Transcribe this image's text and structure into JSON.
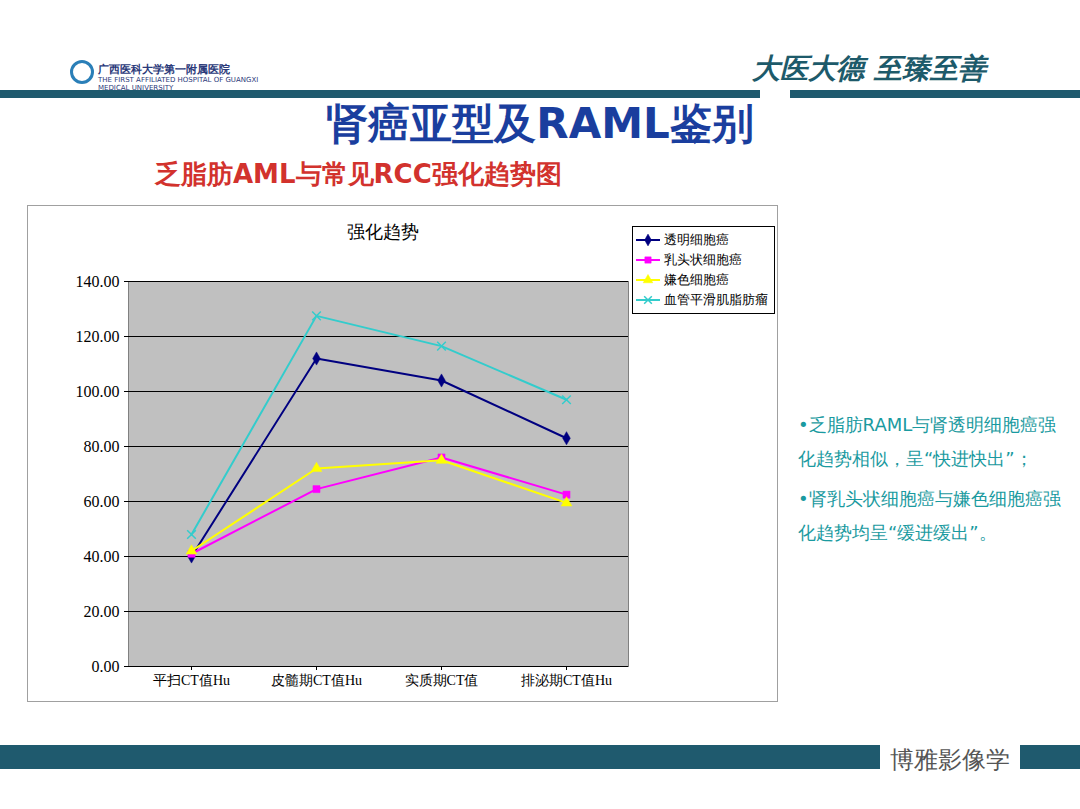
{
  "slide": {
    "logo_cn": "广西医科大学第一附属医院",
    "logo_en": "THE FIRST AFFILIATED HOSPITAL OF GUANGXI MEDICAL UNIVERSITY",
    "slogan": "大医大德 至臻至善",
    "title": "肾癌亚型及RAML鉴别",
    "subtitle": "乏脂肪AML与常见RCC强化趋势图",
    "notes": [
      "•乏脂肪RAML与肾透明细胞癌强化趋势相似，呈“快进快出”；",
      "•肾乳头状细胞癌与嫌色细胞癌强化趋势均呈“缓进缓出”。"
    ],
    "watermark": "博雅影像学"
  },
  "chart_data": {
    "type": "line",
    "title": "强化趋势",
    "categories": [
      "平扫CT值Hu",
      "皮髓期CT值Hu",
      "实质期CT值",
      "排泌期CT值Hu"
    ],
    "series": [
      {
        "name": "透明细胞癌",
        "color": "#000080",
        "marker": "diamond",
        "values": [
          40,
          112,
          104,
          83
        ]
      },
      {
        "name": "乳头状细胞癌",
        "color": "#ff00ff",
        "marker": "square",
        "values": [
          41,
          64.5,
          76,
          62.5
        ]
      },
      {
        "name": "嫌色细胞癌",
        "color": "#ffff00",
        "marker": "triangle",
        "values": [
          42,
          72,
          75,
          59.5
        ]
      },
      {
        "name": "血管平滑肌脂肪瘤",
        "color": "#33cccc",
        "marker": "x",
        "values": [
          48,
          127.5,
          116.5,
          97
        ]
      }
    ],
    "ylim": [
      0,
      140
    ],
    "yticks": [
      {
        "value": 0,
        "label": "0.00"
      },
      {
        "value": 20,
        "label": "20.00"
      },
      {
        "value": 40,
        "label": "40.00"
      },
      {
        "value": 60,
        "label": "60.00"
      },
      {
        "value": 80,
        "label": "80.00"
      },
      {
        "value": 100,
        "label": "100.00"
      },
      {
        "value": 120,
        "label": "120.00"
      },
      {
        "value": 140,
        "label": "140.00"
      }
    ],
    "grid": true,
    "legend": "top-right"
  }
}
